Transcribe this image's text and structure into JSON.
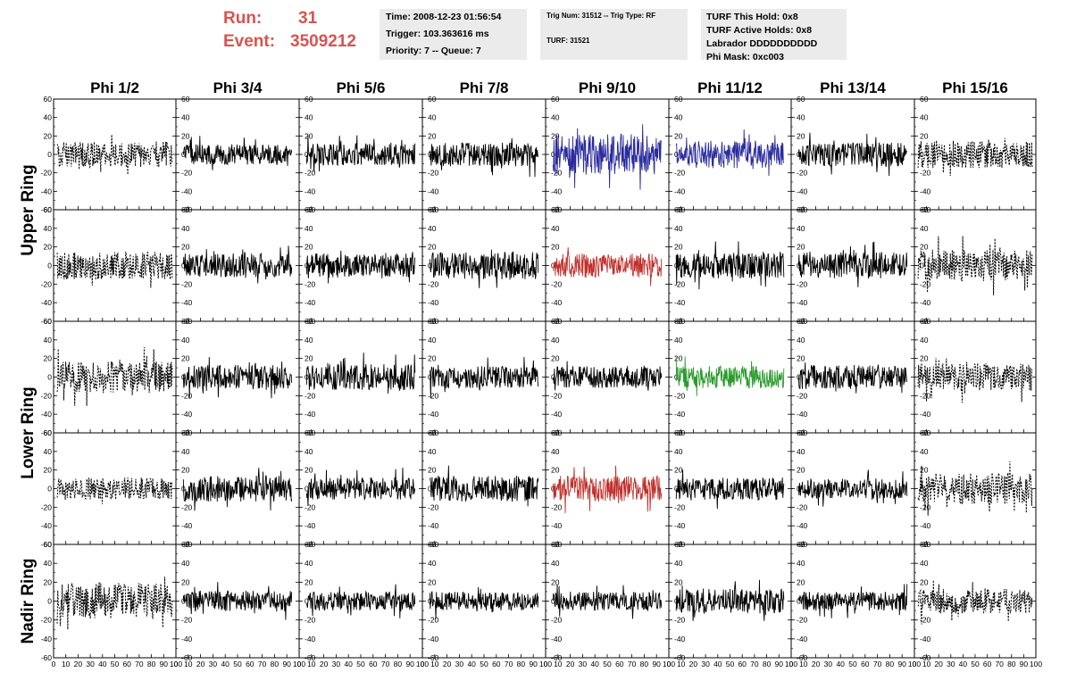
{
  "header": {
    "run_label": "Run:",
    "run_value": "31",
    "event_label": "Event:",
    "event_value": "3509212",
    "time": "Time: 2008-12-23 01:56:54",
    "trigger": "Trigger: 103.363616 ms",
    "priority": "Priority: 7 -- Queue: 7",
    "trig_num": "Trig Num: 31512 -- Trig Type: RF",
    "turf": "TURF: 31521",
    "turf_hold": "TURF This Hold: 0x8",
    "turf_active": "TURF Active Holds: 0x8",
    "labrador": "Labrador DDDDDDDDDD",
    "phi_mask": "Phi Mask: 0xc003"
  },
  "chart_data": {
    "type": "line",
    "columns": [
      "Phi 1/2",
      "Phi 3/4",
      "Phi 5/6",
      "Phi 7/8",
      "Phi 9/10",
      "Phi 11/12",
      "Phi 13/14",
      "Phi 15/16"
    ],
    "ring_labels": [
      {
        "label": "Upper Ring",
        "rows": [
          0,
          1
        ]
      },
      {
        "label": "Lower Ring",
        "rows": [
          2,
          3
        ]
      },
      {
        "label": "Nadir Ring",
        "rows": [
          4
        ]
      }
    ],
    "xlim": [
      0,
      100
    ],
    "ylim": [
      -60,
      60
    ],
    "x_ticks": [
      0,
      10,
      20,
      30,
      40,
      50,
      60,
      70,
      80,
      90,
      100
    ],
    "x_tick_labels": [
      "0",
      "10",
      "20",
      "30",
      "40",
      "50",
      "60",
      "70",
      "80",
      "90",
      "100"
    ],
    "y_ticks": [
      -60,
      -40,
      -20,
      0,
      20,
      40,
      60
    ],
    "y_tick_labels": [
      "-60",
      "-40",
      "-20",
      "0",
      "20",
      "40",
      "60"
    ],
    "trace_colors": {
      "normal": "#000000",
      "blue": "#2b2b9e",
      "red": "#c0302b",
      "green": "#2a9a2a"
    },
    "panels": [
      [
        {
          "c": "k",
          "s": "dot",
          "a": 14
        },
        {
          "c": "k",
          "s": "solid",
          "a": 11
        },
        {
          "c": "k",
          "s": "solid",
          "a": 12
        },
        {
          "c": "k",
          "s": "solid",
          "a": 13
        },
        {
          "c": "blue",
          "s": "solid",
          "a": 22
        },
        {
          "c": "blue",
          "s": "solid",
          "a": 15
        },
        {
          "c": "k",
          "s": "solid",
          "a": 13
        },
        {
          "c": "k",
          "s": "dot",
          "a": 15
        }
      ],
      [
        {
          "c": "k",
          "s": "dot",
          "a": 15
        },
        {
          "c": "k",
          "s": "solid",
          "a": 13
        },
        {
          "c": "k",
          "s": "solid",
          "a": 13
        },
        {
          "c": "k",
          "s": "solid",
          "a": 15
        },
        {
          "c": "red",
          "s": "solid",
          "a": 13
        },
        {
          "c": "k",
          "s": "solid",
          "a": 14
        },
        {
          "c": "k",
          "s": "solid",
          "a": 14
        },
        {
          "c": "k",
          "s": "dot",
          "a": 17
        }
      ],
      [
        {
          "c": "k",
          "s": "dot",
          "a": 17
        },
        {
          "c": "k",
          "s": "solid",
          "a": 13
        },
        {
          "c": "k",
          "s": "solid",
          "a": 14
        },
        {
          "c": "k",
          "s": "solid",
          "a": 12
        },
        {
          "c": "k",
          "s": "solid",
          "a": 12
        },
        {
          "c": "green",
          "s": "solid",
          "a": 12
        },
        {
          "c": "k",
          "s": "solid",
          "a": 13
        },
        {
          "c": "k",
          "s": "dot",
          "a": 15
        }
      ],
      [
        {
          "c": "k",
          "s": "dot",
          "a": 12
        },
        {
          "c": "k",
          "s": "solid",
          "a": 14
        },
        {
          "c": "k",
          "s": "solid",
          "a": 12
        },
        {
          "c": "k",
          "s": "solid",
          "a": 14
        },
        {
          "c": "red",
          "s": "solid",
          "a": 14
        },
        {
          "c": "k",
          "s": "solid",
          "a": 12
        },
        {
          "c": "k",
          "s": "solid",
          "a": 11
        },
        {
          "c": "k",
          "s": "dot",
          "a": 17
        }
      ],
      [
        {
          "c": "k",
          "s": "dot",
          "a": 19
        },
        {
          "c": "k",
          "s": "solid",
          "a": 11
        },
        {
          "c": "k",
          "s": "solid",
          "a": 10
        },
        {
          "c": "k",
          "s": "solid",
          "a": 10
        },
        {
          "c": "k",
          "s": "solid",
          "a": 10
        },
        {
          "c": "k",
          "s": "solid",
          "a": 13
        },
        {
          "c": "k",
          "s": "solid",
          "a": 10
        },
        {
          "c": "k",
          "s": "dot",
          "a": 13
        }
      ]
    ]
  }
}
